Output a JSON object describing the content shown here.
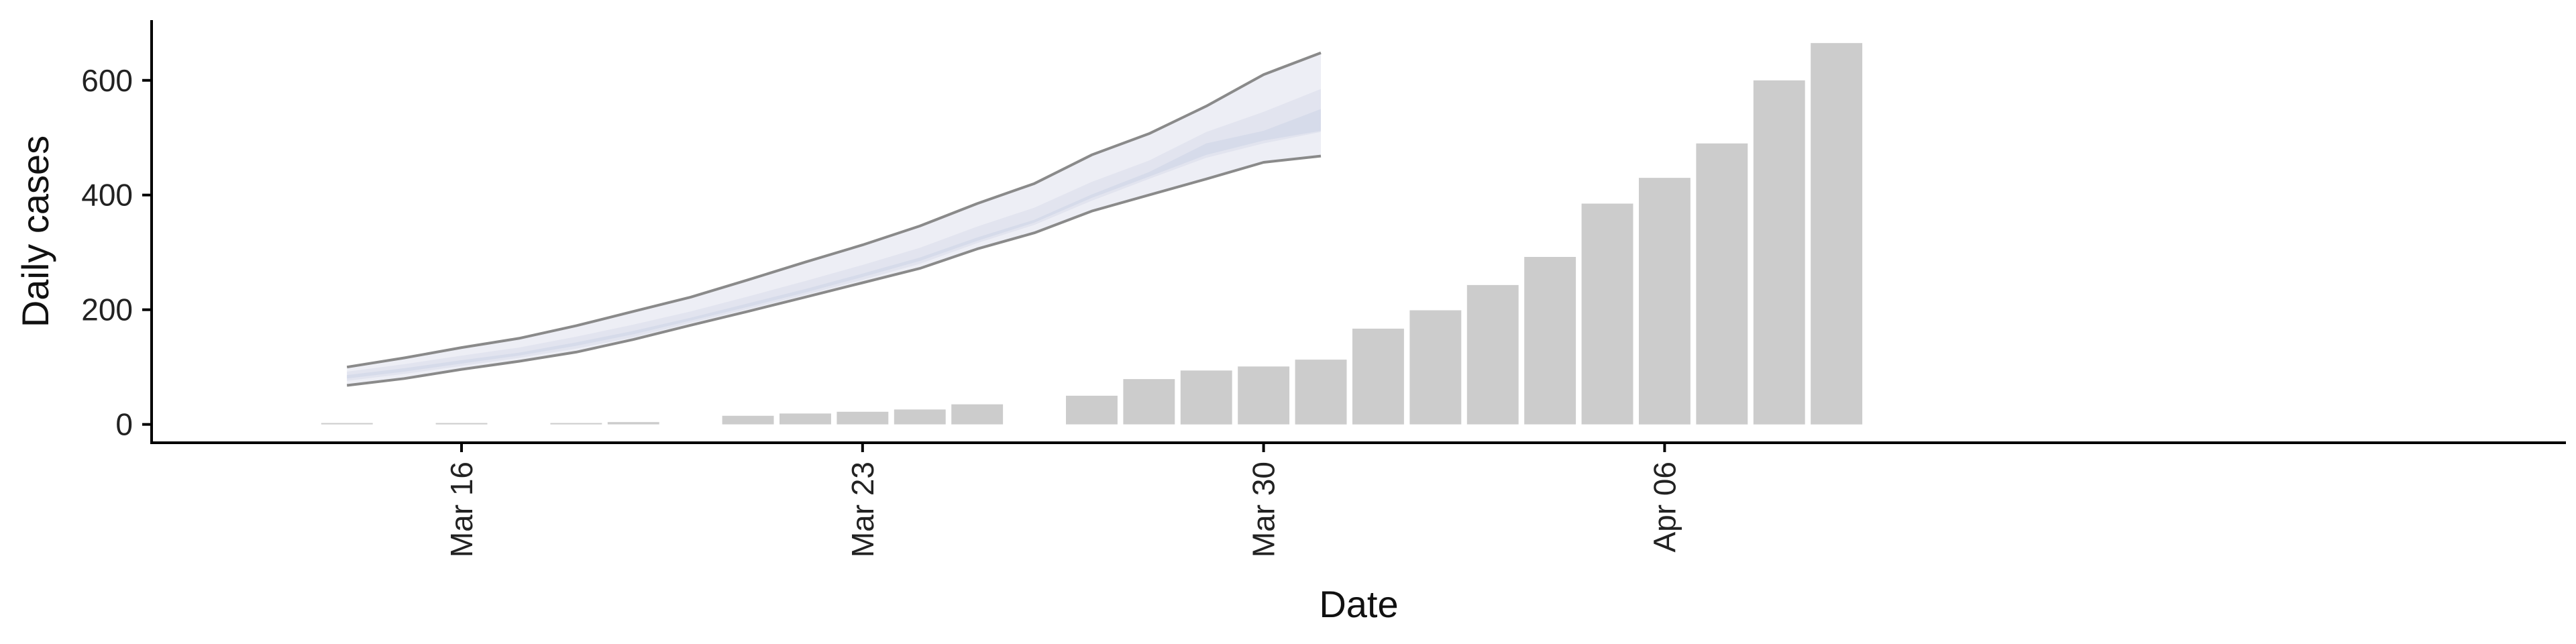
{
  "chart_data": {
    "type": "bar",
    "xlabel": "Date",
    "ylabel": "Daily cases",
    "x_tick_labels": [
      "Mar 16",
      "Mar 23",
      "Mar 30",
      "Apr 06"
    ],
    "x_tick_dates": [
      "2020-03-16",
      "2020-03-23",
      "2020-03-30",
      "2020-04-06"
    ],
    "y_ticks": [
      0,
      200,
      400,
      600
    ],
    "ylim": [
      -32,
      705
    ],
    "xlim": [
      "2020-03-12",
      "2020-04-12"
    ],
    "grid": false,
    "legend": "none",
    "bar_color": "#cccccc",
    "bars": [
      {
        "date": "2020-03-14",
        "value": 1
      },
      {
        "date": "2020-03-16",
        "value": 1
      },
      {
        "date": "2020-03-18",
        "value": 2
      },
      {
        "date": "2020-03-19",
        "value": 4
      },
      {
        "date": "2020-03-21",
        "value": 15
      },
      {
        "date": "2020-03-22",
        "value": 19
      },
      {
        "date": "2020-03-23",
        "value": 22
      },
      {
        "date": "2020-03-24",
        "value": 26
      },
      {
        "date": "2020-03-25",
        "value": 35
      },
      {
        "date": "2020-03-27",
        "value": 50
      },
      {
        "date": "2020-03-28",
        "value": 79
      },
      {
        "date": "2020-03-29",
        "value": 94
      },
      {
        "date": "2020-03-30",
        "value": 101
      },
      {
        "date": "2020-03-31",
        "value": 113
      },
      {
        "date": "2020-04-01",
        "value": 167
      },
      {
        "date": "2020-04-02",
        "value": 199
      },
      {
        "date": "2020-04-03",
        "value": 243
      },
      {
        "date": "2020-04-04",
        "value": 292
      },
      {
        "date": "2020-04-05",
        "value": 385
      },
      {
        "date": "2020-04-06",
        "value": 430
      },
      {
        "date": "2020-04-07",
        "value": 490
      },
      {
        "date": "2020-04-08",
        "value": 600
      },
      {
        "date": "2020-04-09",
        "value": 665
      }
    ],
    "projection": {
      "dates": [
        "2020-03-14",
        "2020-03-15",
        "2020-03-16",
        "2020-03-17",
        "2020-03-18",
        "2020-03-19",
        "2020-03-20",
        "2020-03-21",
        "2020-03-22",
        "2020-03-23",
        "2020-03-24",
        "2020-03-25",
        "2020-03-26",
        "2020-03-27",
        "2020-03-28",
        "2020-03-29",
        "2020-03-30",
        "2020-03-31"
      ],
      "outer_upper": [
        100,
        116,
        134,
        150,
        172,
        197,
        222,
        252,
        283,
        313,
        346,
        385,
        420,
        470,
        507,
        555,
        610,
        648
      ],
      "outer_lower": [
        68,
        80,
        96,
        110,
        126,
        148,
        173,
        197,
        222,
        247,
        272,
        306,
        334,
        372,
        400,
        428,
        457,
        468
      ],
      "mid_upper": [
        92,
        105,
        120,
        134,
        153,
        174,
        197,
        223,
        250,
        278,
        308,
        345,
        378,
        423,
        460,
        510,
        545,
        585
      ],
      "mid_lower": [
        76,
        88,
        102,
        116,
        132,
        152,
        177,
        201,
        226,
        252,
        280,
        316,
        348,
        390,
        428,
        465,
        490,
        510
      ],
      "inner_upper": [
        86,
        98,
        112,
        125,
        143,
        163,
        186,
        211,
        236,
        263,
        291,
        326,
        357,
        401,
        440,
        490,
        512,
        550
      ],
      "inner_lower": [
        80,
        92,
        106,
        120,
        137,
        157,
        181,
        205,
        230,
        257,
        285,
        320,
        352,
        395,
        432,
        470,
        495,
        512
      ],
      "outer_color": "#edeef5",
      "mid_color": "#e2e4ef",
      "inner_color": "#d6dbea",
      "boundary_color": "#8a8a8a"
    }
  }
}
